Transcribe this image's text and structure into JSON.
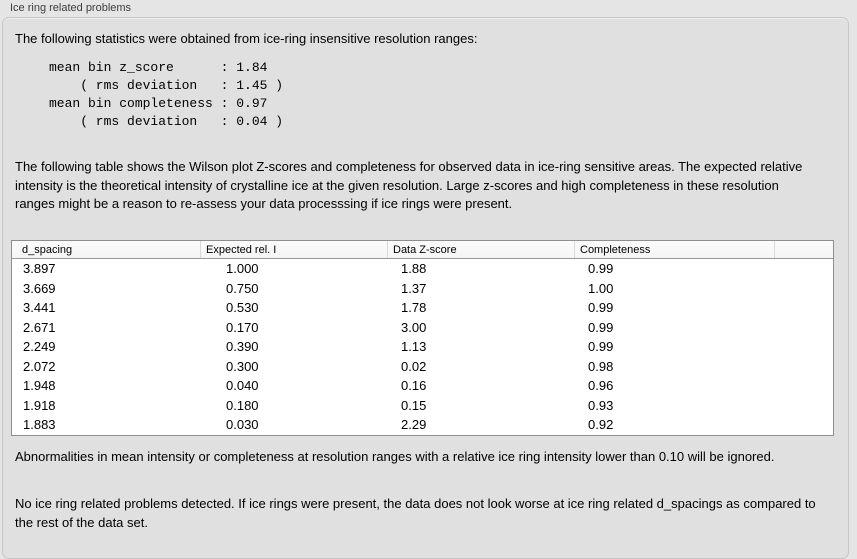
{
  "panel": {
    "title": "Ice ring related problems"
  },
  "intro": {
    "text": "The following statistics were obtained from ice-ring insensitive resolution ranges:"
  },
  "stats_block": {
    "lines": [
      "mean bin z_score      : 1.84",
      "    ( rms deviation   : 1.45 )",
      "mean bin completeness : 0.97",
      "    ( rms deviation   : 0.04 )"
    ]
  },
  "table_description": "The following table shows the Wilson plot Z-scores and completeness for observed data in ice-ring sensitive areas. The expected relative intensity is the theoretical intensity of crystalline ice at the given resolution. Large z-scores and high completeness in these resolution ranges might be a reason to re-assess your data processsing if ice rings were present.",
  "table": {
    "columns": [
      "d_spacing",
      "Expected rel. I",
      "Data Z-score",
      "Completeness"
    ],
    "rows": [
      [
        "3.897",
        "1.000",
        "1.88",
        "0.99"
      ],
      [
        "3.669",
        "0.750",
        "1.37",
        "1.00"
      ],
      [
        "3.441",
        "0.530",
        "1.78",
        "0.99"
      ],
      [
        "2.671",
        "0.170",
        "3.00",
        "0.99"
      ],
      [
        "2.249",
        "0.390",
        "1.13",
        "0.99"
      ],
      [
        "2.072",
        "0.300",
        "0.02",
        "0.98"
      ],
      [
        "1.948",
        "0.040",
        "0.16",
        "0.96"
      ],
      [
        "1.918",
        "0.180",
        "0.15",
        "0.93"
      ],
      [
        "1.883",
        "0.030",
        "2.29",
        "0.92"
      ]
    ]
  },
  "notes": {
    "ignore_note": "Abnormalities in mean intensity or completeness at resolution ranges with a relative ice ring intensity lower than 0.10 will be ignored.",
    "conclusion": "No ice ring related problems detected. If ice rings were present, the data does not look worse at ice ring related d_spacings as compared to the rest of the data set."
  },
  "colors": {
    "page_bg": "#e5e5e5",
    "box_bg": "#e0e0e0",
    "box_border": "#c6c6c6",
    "title_text": "#3c3c3c",
    "text": "#000000",
    "table_bg": "#ffffff",
    "table_border": "#8e8e8e",
    "header_bg": "#f5f5f5",
    "header_separator": "#d8d8d8",
    "header_underline": "#9a9a9a"
  }
}
